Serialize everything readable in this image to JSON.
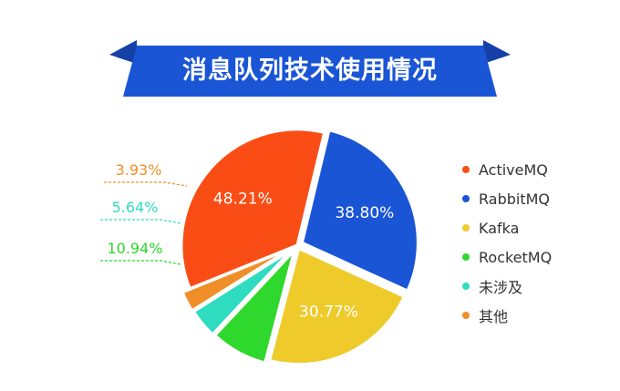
{
  "chart_data": {
    "type": "pie",
    "title": "消息队列技术使用情况",
    "categories": [
      "ActiveMQ",
      "RabbitMQ",
      "Kafka",
      "RocketMQ",
      "未涉及",
      "其他"
    ],
    "values": [
      48.21,
      38.8,
      30.77,
      10.94,
      5.64,
      3.93
    ],
    "value_labels": [
      "48.21%",
      "38.80%",
      "30.77%",
      "10.94%",
      "5.64%",
      "3.93%"
    ],
    "colors": [
      "#fa4d16",
      "#1a55d6",
      "#eecb2b",
      "#2fd82c",
      "#2fdcc0",
      "#f08f2a"
    ],
    "legend_position": "right"
  },
  "banner": {
    "color": "#1a55d6",
    "shadow_color": "#1440a8"
  }
}
